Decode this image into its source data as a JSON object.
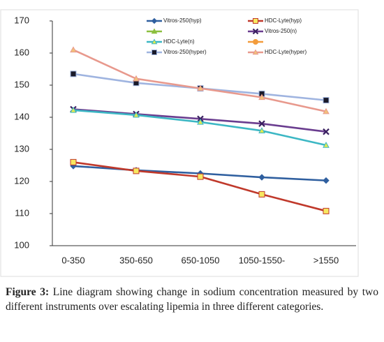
{
  "chart_data": {
    "type": "line",
    "categories": [
      "0-350",
      "350-650",
      "650-1050",
      "1050-1550-",
      ">1550"
    ],
    "ylim": [
      100,
      170
    ],
    "yticks": [
      100,
      110,
      120,
      130,
      140,
      150,
      160,
      170
    ],
    "grid": false,
    "series": [
      {
        "name": "Vitros-250(hyp)",
        "color": "#2f5f9f",
        "marker": "diamond",
        "marker_color": "#2f5f9f",
        "values": [
          124.8,
          123.5,
          122.5,
          121.3,
          120.3
        ]
      },
      {
        "name": "HDC-Lyte(hyp)",
        "color": "#c0392b",
        "marker": "square",
        "marker_color": "#f7e860",
        "values": [
          126,
          123.3,
          121.5,
          116,
          110.8
        ]
      },
      {
        "color": "#8cbf3f",
        "marker": "triangle",
        "marker_color": "#8cbf3f"
      },
      {
        "name": "Vitros-250(n)",
        "color": "#6a3d8f",
        "marker": "x",
        "marker_color": "#3a2060",
        "values": [
          142.5,
          141,
          139.5,
          138,
          135.5
        ]
      },
      {
        "name": "HDC-Lyte(n)",
        "color": "#3cb7c4",
        "marker": "triangle",
        "marker_color": "#e0ea50",
        "values": [
          142.2,
          140.7,
          138.5,
          135.8,
          131.3
        ]
      },
      {
        "color": "#f39c3c",
        "marker": "circle",
        "marker_color": "#f39c3c"
      },
      {
        "name": "Vitros-250(hyper)",
        "color": "#9fb4e0",
        "marker": "square",
        "marker_color": "#1a1a2a",
        "values": [
          153.5,
          150.7,
          149,
          147.3,
          145.3
        ]
      },
      {
        "name": "HDC-Lyte(hyper)",
        "color": "#e8998d",
        "marker": "triangle",
        "marker_color": "#f2c27a",
        "values": [
          161,
          152,
          149,
          146.2,
          141.8
        ]
      }
    ]
  },
  "caption": {
    "label": "Figure 3:",
    "text": "Line diagram showing change in sodium concentration measured by two different instruments over escalating lipemia in three different categories."
  }
}
